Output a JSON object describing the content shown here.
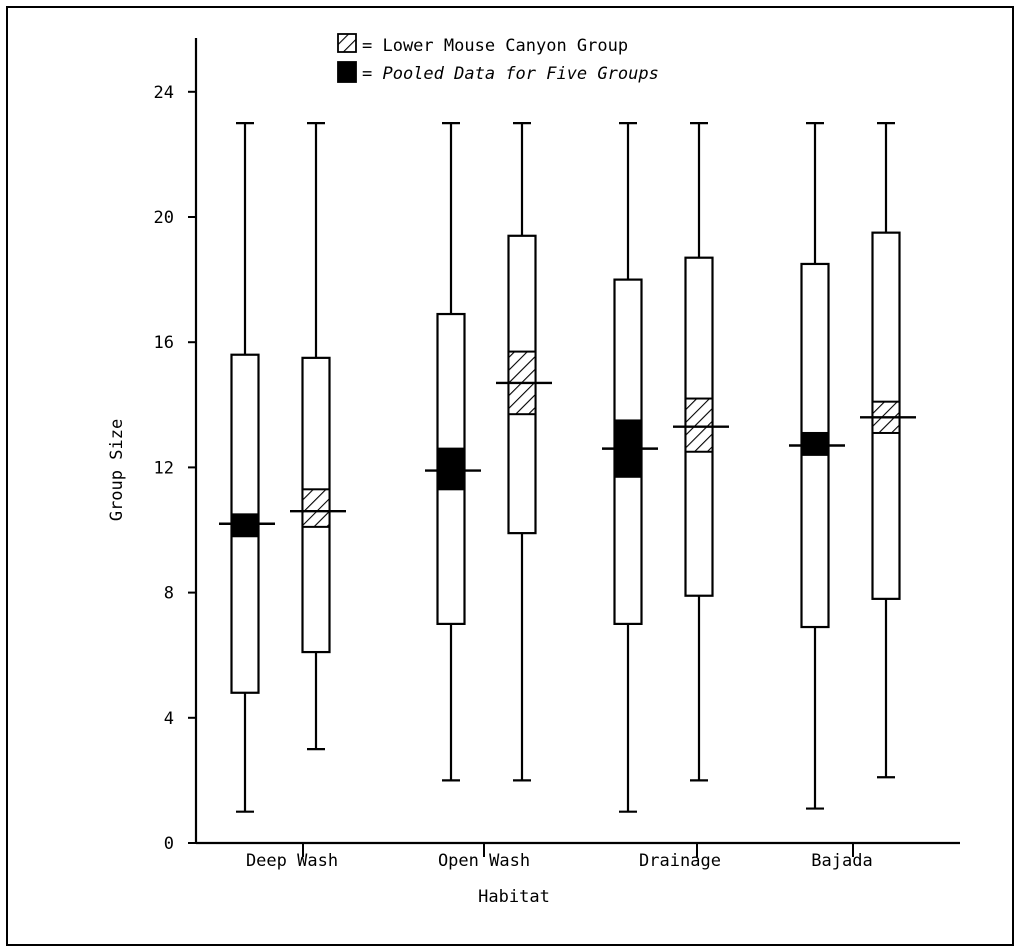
{
  "chart_data": {
    "type": "box",
    "title": "",
    "xlabel": "Habitat",
    "ylabel": "Group Size",
    "ylim": [
      0,
      24
    ],
    "yticks": [
      0,
      4,
      8,
      12,
      16,
      20,
      24
    ],
    "categories": [
      "Deep Wash",
      "Open Wash",
      "Drainage",
      "Bajada"
    ],
    "legend": {
      "placement": "top-center",
      "entries": [
        {
          "pattern": "hatched",
          "label": "= Lower Mouse Canyon Group"
        },
        {
          "pattern": "solid",
          "label": "= Pooled Data for Five Groups"
        }
      ]
    },
    "series": [
      {
        "name": "Pooled Data for Five Groups",
        "pattern": "solid",
        "boxes": [
          {
            "category": "Deep Wash",
            "min": 1,
            "q1": 4.8,
            "median": 10.2,
            "q3": 15.6,
            "max": 23,
            "ci_low": 9.8,
            "ci_high": 10.5
          },
          {
            "category": "Open Wash",
            "min": 2,
            "q1": 7.0,
            "median": 11.9,
            "q3": 16.9,
            "max": 23,
            "ci_low": 11.3,
            "ci_high": 12.6
          },
          {
            "category": "Drainage",
            "min": 1,
            "q1": 7.0,
            "median": 12.6,
            "q3": 18.0,
            "max": 23,
            "ci_low": 11.7,
            "ci_high": 13.5
          },
          {
            "category": "Bajada",
            "min": 1.1,
            "q1": 6.9,
            "median": 12.7,
            "q3": 18.5,
            "max": 23,
            "ci_low": 12.4,
            "ci_high": 13.1
          }
        ]
      },
      {
        "name": "Lower Mouse Canyon Group",
        "pattern": "hatched",
        "boxes": [
          {
            "category": "Deep Wash",
            "min": 3,
            "q1": 6.1,
            "median": 10.6,
            "q3": 15.5,
            "max": 23,
            "ci_low": 10.1,
            "ci_high": 11.3
          },
          {
            "category": "Open Wash",
            "min": 2,
            "q1": 9.9,
            "median": 14.7,
            "q3": 19.4,
            "max": 23,
            "ci_low": 13.7,
            "ci_high": 15.7
          },
          {
            "category": "Drainage",
            "min": 2,
            "q1": 7.9,
            "median": 13.3,
            "q3": 18.7,
            "max": 23,
            "ci_low": 12.5,
            "ci_high": 14.2
          },
          {
            "category": "Bajada",
            "min": 2.1,
            "q1": 7.8,
            "median": 13.6,
            "q3": 19.5,
            "max": 23,
            "ci_low": 13.1,
            "ci_high": 14.1
          }
        ]
      }
    ]
  }
}
